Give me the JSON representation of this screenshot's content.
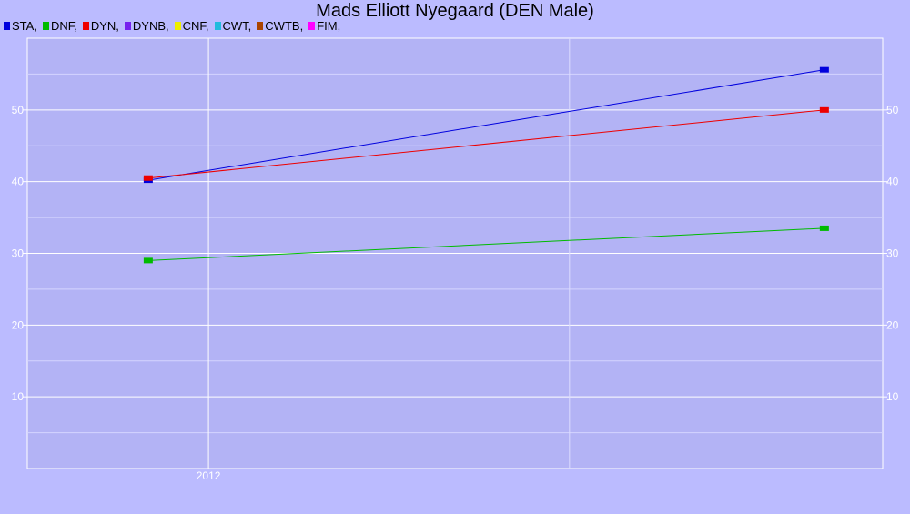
{
  "title": "Mads Elliott Nyegaard (DEN Male)",
  "legend": [
    {
      "label": "STA,",
      "color": "#0000dd"
    },
    {
      "label": "DNF,",
      "color": "#00bb00"
    },
    {
      "label": "DYN,",
      "color": "#ee0000"
    },
    {
      "label": "DYNB,",
      "color": "#7722ee"
    },
    {
      "label": "CNF,",
      "color": "#eeee00"
    },
    {
      "label": "CWT,",
      "color": "#22bbdd"
    },
    {
      "label": "CWTB,",
      "color": "#aa4400"
    },
    {
      "label": "FIM,",
      "color": "#ff00ff"
    }
  ],
  "chart_data": {
    "type": "line",
    "title": "Mads Elliott Nyegaard (DEN Male)",
    "xlabel": "",
    "ylabel": "",
    "x_tick_labels": [
      "2012"
    ],
    "y_ticks": [
      10,
      20,
      30,
      40,
      50
    ],
    "ylim": [
      0,
      60
    ],
    "grid": true,
    "legend_position": "top-left",
    "series": [
      {
        "name": "STA",
        "color": "#0000dd",
        "points": [
          {
            "x": "2011-09",
            "y": 40.2
          },
          {
            "x": "2015-06",
            "y": 55.6
          }
        ]
      },
      {
        "name": "DNF",
        "color": "#00bb00",
        "points": [
          {
            "x": "2011-09",
            "y": 29.0
          },
          {
            "x": "2015-06",
            "y": 33.5
          }
        ]
      },
      {
        "name": "DYN",
        "color": "#ee0000",
        "points": [
          {
            "x": "2011-09",
            "y": 40.5
          },
          {
            "x": "2015-06",
            "y": 50.0
          }
        ]
      }
    ]
  }
}
